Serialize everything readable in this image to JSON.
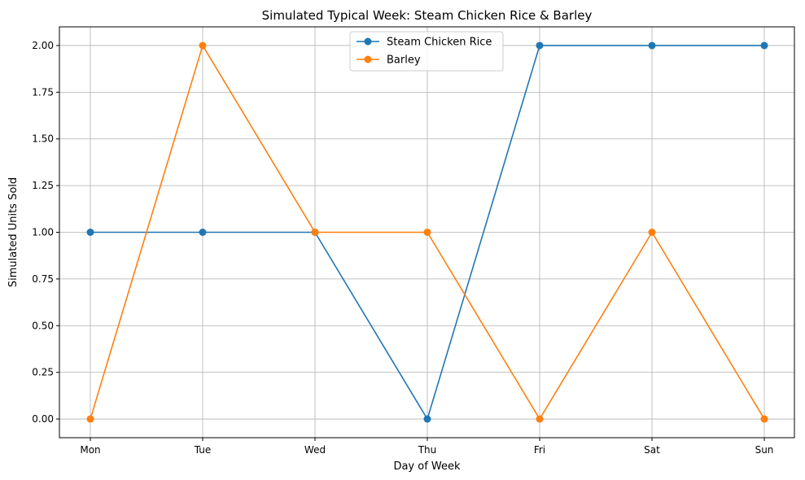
{
  "chart_data": {
    "type": "line",
    "title": "Simulated Typical Week: Steam Chicken Rice & Barley",
    "xlabel": "Day of Week",
    "ylabel": "Simulated Units Sold",
    "categories": [
      "Mon",
      "Tue",
      "Wed",
      "Thu",
      "Fri",
      "Sat",
      "Sun"
    ],
    "ylim": [
      -0.1,
      2.1
    ],
    "yticks": [
      0.0,
      0.25,
      0.5,
      0.75,
      1.0,
      1.25,
      1.5,
      1.75,
      2.0
    ],
    "ytick_labels": [
      "0.00",
      "0.25",
      "0.50",
      "0.75",
      "1.00",
      "1.25",
      "1.50",
      "1.75",
      "2.00"
    ],
    "grid": true,
    "legend_position": "top-center",
    "series": [
      {
        "name": "Steam Chicken Rice",
        "values": [
          1,
          1,
          1,
          0,
          2,
          2,
          2
        ],
        "color": "#1f77b4",
        "marker": "circle"
      },
      {
        "name": "Barley",
        "values": [
          0,
          2,
          1,
          1,
          0,
          1,
          0
        ],
        "color": "#ff7f0e",
        "marker": "circle"
      }
    ]
  }
}
